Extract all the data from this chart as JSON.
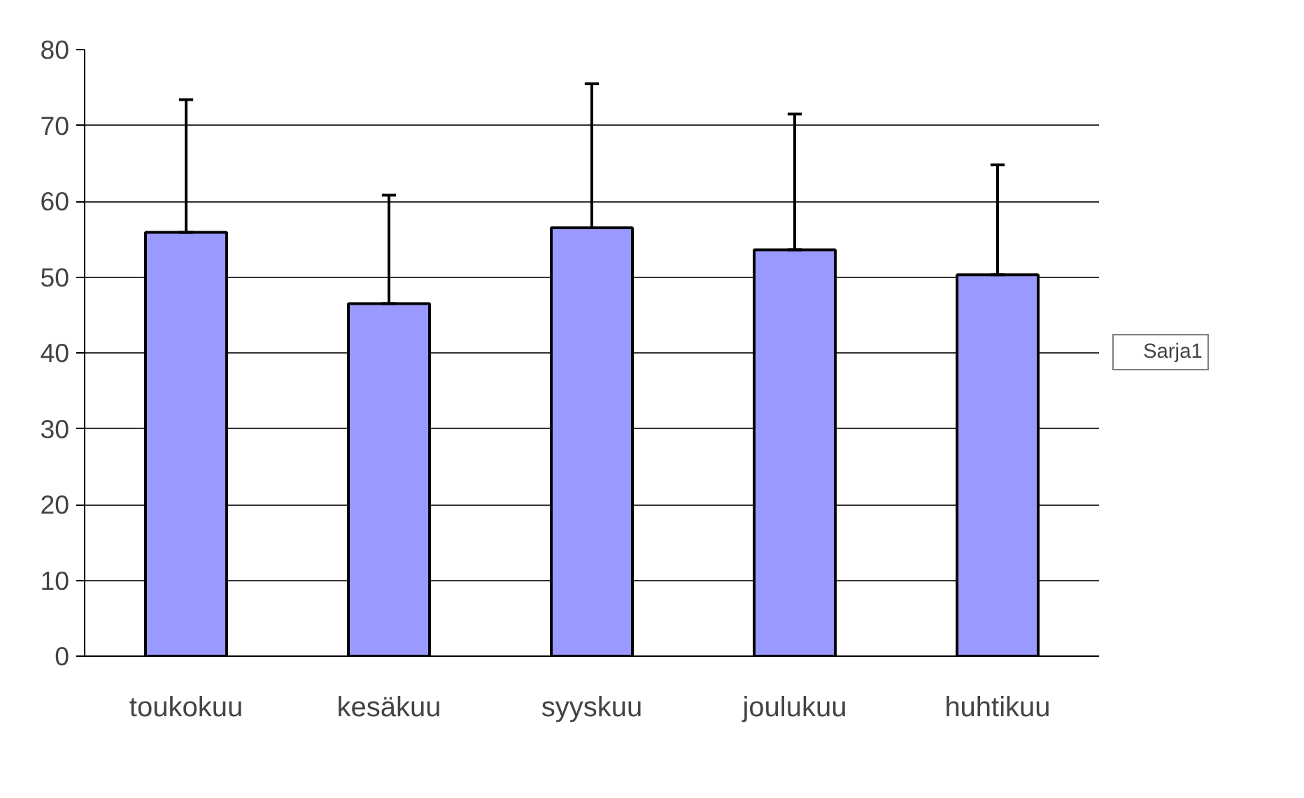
{
  "chart_data": {
    "type": "bar",
    "categories": [
      "toukokuu",
      "kesäkuu",
      "syyskuu",
      "joulukuu",
      "huhtikuu"
    ],
    "series": [
      {
        "name": "Sarja1",
        "color": "#9999ff",
        "values": [
          55.9,
          46.5,
          56.5,
          53.6,
          50.3
        ],
        "errors": [
          [
            55.9,
            73.4
          ],
          [
            46.5,
            60.8
          ],
          [
            56.5,
            75.5
          ],
          [
            53.6,
            71.5
          ],
          [
            50.3,
            64.8
          ]
        ]
      }
    ],
    "ylim": [
      0,
      80
    ],
    "yticks": [
      0,
      10,
      20,
      30,
      40,
      50,
      60,
      70,
      80
    ],
    "grid": "y",
    "legend": "right"
  }
}
